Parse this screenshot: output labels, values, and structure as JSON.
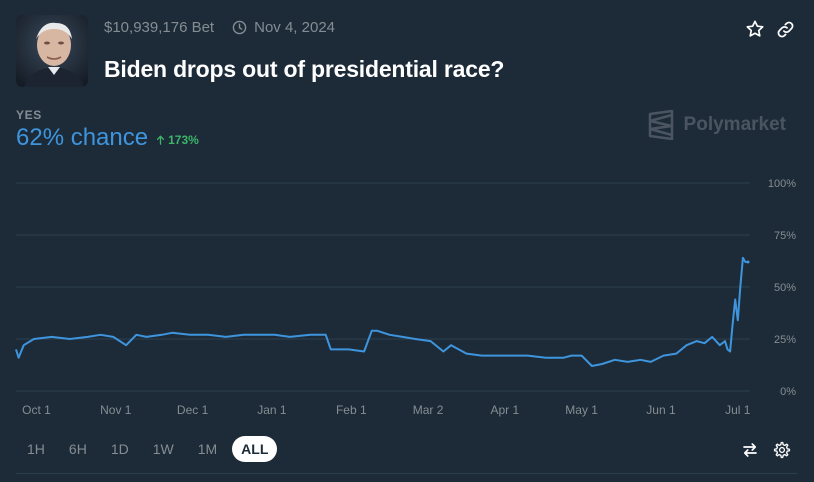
{
  "header": {
    "volume": "$10,939,176 Bet",
    "date": "Nov 4, 2024",
    "title": "Biden drops out of presidential race?"
  },
  "outcome": {
    "label": "YES",
    "chance": "62% chance",
    "change": "173%"
  },
  "brand": {
    "name": "Polymarket"
  },
  "colors": {
    "line": "#3e95dd",
    "positive": "#3db468",
    "background": "#1d2b39",
    "grid": "#2c3f4f"
  },
  "icons": {
    "star": "star-icon",
    "link": "link-icon",
    "clock": "clock-icon",
    "swap": "swap-icon",
    "settings": "gear-icon"
  },
  "time_ranges": [
    {
      "label": "1H",
      "active": false
    },
    {
      "label": "6H",
      "active": false
    },
    {
      "label": "1D",
      "active": false
    },
    {
      "label": "1W",
      "active": false
    },
    {
      "label": "1M",
      "active": false
    },
    {
      "label": "ALL",
      "active": true
    }
  ],
  "chart_data": {
    "type": "line",
    "title": "",
    "xlabel": "",
    "ylabel": "",
    "ylim": [
      0,
      100
    ],
    "grid": true,
    "y_ticks": [
      "0%",
      "25%",
      "50%",
      "75%",
      "100%"
    ],
    "x_ticks": [
      "Oct 1",
      "Nov 1",
      "Dec 1",
      "Jan 1",
      "Feb 1",
      "Mar 2",
      "Apr 1",
      "May 1",
      "Jun 1",
      "Jul 1"
    ],
    "x_tick_dates": [
      "2023-10-01",
      "2023-11-01",
      "2023-12-01",
      "2024-01-01",
      "2024-02-01",
      "2024-03-02",
      "2024-04-01",
      "2024-05-01",
      "2024-06-01",
      "2024-07-01"
    ],
    "series": [
      {
        "name": "",
        "x": [
          "2023-09-23",
          "2023-09-24",
          "2023-09-26",
          "2023-09-30",
          "2023-10-07",
          "2023-10-14",
          "2023-10-21",
          "2023-10-26",
          "2023-10-31",
          "2023-11-05",
          "2023-11-09",
          "2023-11-13",
          "2023-11-19",
          "2023-11-23",
          "2023-11-30",
          "2023-12-07",
          "2023-12-14",
          "2023-12-21",
          "2023-12-27",
          "2024-01-02",
          "2024-01-08",
          "2024-01-16",
          "2024-01-22",
          "2024-01-24",
          "2024-01-31",
          "2024-02-06",
          "2024-02-09",
          "2024-02-11",
          "2024-02-16",
          "2024-02-21",
          "2024-02-26",
          "2024-03-03",
          "2024-03-08",
          "2024-03-11",
          "2024-03-17",
          "2024-03-23",
          "2024-03-30",
          "2024-04-04",
          "2024-04-10",
          "2024-04-17",
          "2024-04-24",
          "2024-04-27",
          "2024-05-01",
          "2024-05-05",
          "2024-05-09",
          "2024-05-14",
          "2024-05-19",
          "2024-05-24",
          "2024-05-28",
          "2024-06-02",
          "2024-06-07",
          "2024-06-11",
          "2024-06-15",
          "2024-06-18",
          "2024-06-21",
          "2024-06-24",
          "2024-06-26",
          "2024-06-27",
          "2024-06-28",
          "2024-06-29",
          "2024-06-30",
          "2024-07-01",
          "2024-07-02",
          "2024-07-03",
          "2024-07-04",
          "2024-07-05"
        ],
        "values": [
          20,
          16,
          22,
          25,
          26,
          25,
          26,
          27,
          26,
          22,
          27,
          26,
          27,
          28,
          27,
          27,
          26,
          27,
          27,
          27,
          26,
          27,
          27,
          20,
          20,
          19,
          29,
          29,
          27,
          26,
          25,
          24,
          19,
          22,
          18,
          17,
          17,
          17,
          17,
          16,
          16,
          17,
          17,
          12,
          13,
          15,
          14,
          15,
          14,
          17,
          18,
          22,
          24,
          23,
          26,
          22,
          24,
          20,
          19,
          32,
          44,
          34,
          50,
          64,
          62,
          62
        ]
      }
    ]
  }
}
